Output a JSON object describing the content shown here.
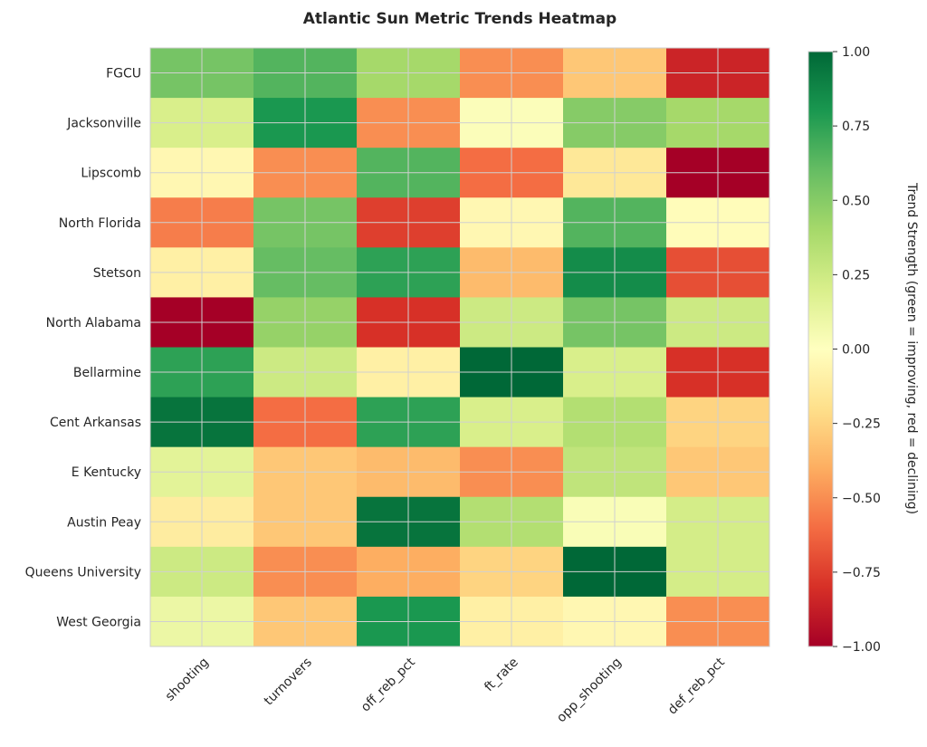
{
  "chart_data": {
    "type": "heatmap",
    "title": "Atlantic Sun Metric Trends Heatmap",
    "xlabel": "",
    "ylabel": "",
    "columns": [
      "shooting",
      "turnovers",
      "off_reb_pct",
      "ft_rate",
      "opp_shooting",
      "def_reb_pct"
    ],
    "rows": [
      "FGCU",
      "Jacksonville",
      "Lipscomb",
      "North Florida",
      "Stetson",
      "North Alabama",
      "Bellarmine",
      "Cent Arkansas",
      "E Kentucky",
      "Austin Peay",
      "Queens University",
      "West Georgia"
    ],
    "values": [
      [
        0.55,
        0.65,
        0.4,
        -0.5,
        -0.3,
        -0.85
      ],
      [
        0.2,
        0.8,
        -0.5,
        0.02,
        0.5,
        0.4
      ],
      [
        -0.05,
        -0.5,
        0.65,
        -0.6,
        -0.15,
        -1.0
      ],
      [
        -0.55,
        0.55,
        -0.75,
        -0.05,
        0.65,
        -0.02
      ],
      [
        -0.1,
        0.6,
        0.75,
        -0.35,
        0.85,
        -0.7
      ],
      [
        -1.0,
        0.45,
        -0.8,
        0.25,
        0.55,
        0.25
      ],
      [
        0.75,
        0.25,
        -0.1,
        1.0,
        0.2,
        -0.8
      ],
      [
        0.95,
        -0.6,
        0.75,
        0.2,
        0.35,
        -0.25
      ],
      [
        0.15,
        -0.3,
        -0.35,
        -0.5,
        0.3,
        -0.3
      ],
      [
        -0.12,
        -0.3,
        0.95,
        0.35,
        0.03,
        0.22
      ],
      [
        0.25,
        -0.5,
        -0.4,
        -0.25,
        1.0,
        0.22
      ],
      [
        0.1,
        -0.3,
        0.8,
        -0.1,
        -0.05,
        -0.5
      ]
    ],
    "vmin": -1.0,
    "vmax": 1.0,
    "colormap": "RdYlGn",
    "colorbar": {
      "label": "Trend Strength (green = improving, red = declining)",
      "ticks": [
        "1.00",
        "0.75",
        "0.50",
        "0.25",
        "0.00",
        "−0.25",
        "−0.50",
        "−0.75",
        "−1.00"
      ],
      "tick_values": [
        1,
        0.75,
        0.5,
        0.25,
        0,
        -0.25,
        -0.5,
        -0.75,
        -1
      ]
    },
    "colormap_stops": [
      "#a50026",
      "#d73027",
      "#f46d43",
      "#fdae61",
      "#fee08b",
      "#ffffbf",
      "#d9ef8b",
      "#a6d96a",
      "#66bd63",
      "#1a9850",
      "#006837"
    ],
    "grid": true
  }
}
